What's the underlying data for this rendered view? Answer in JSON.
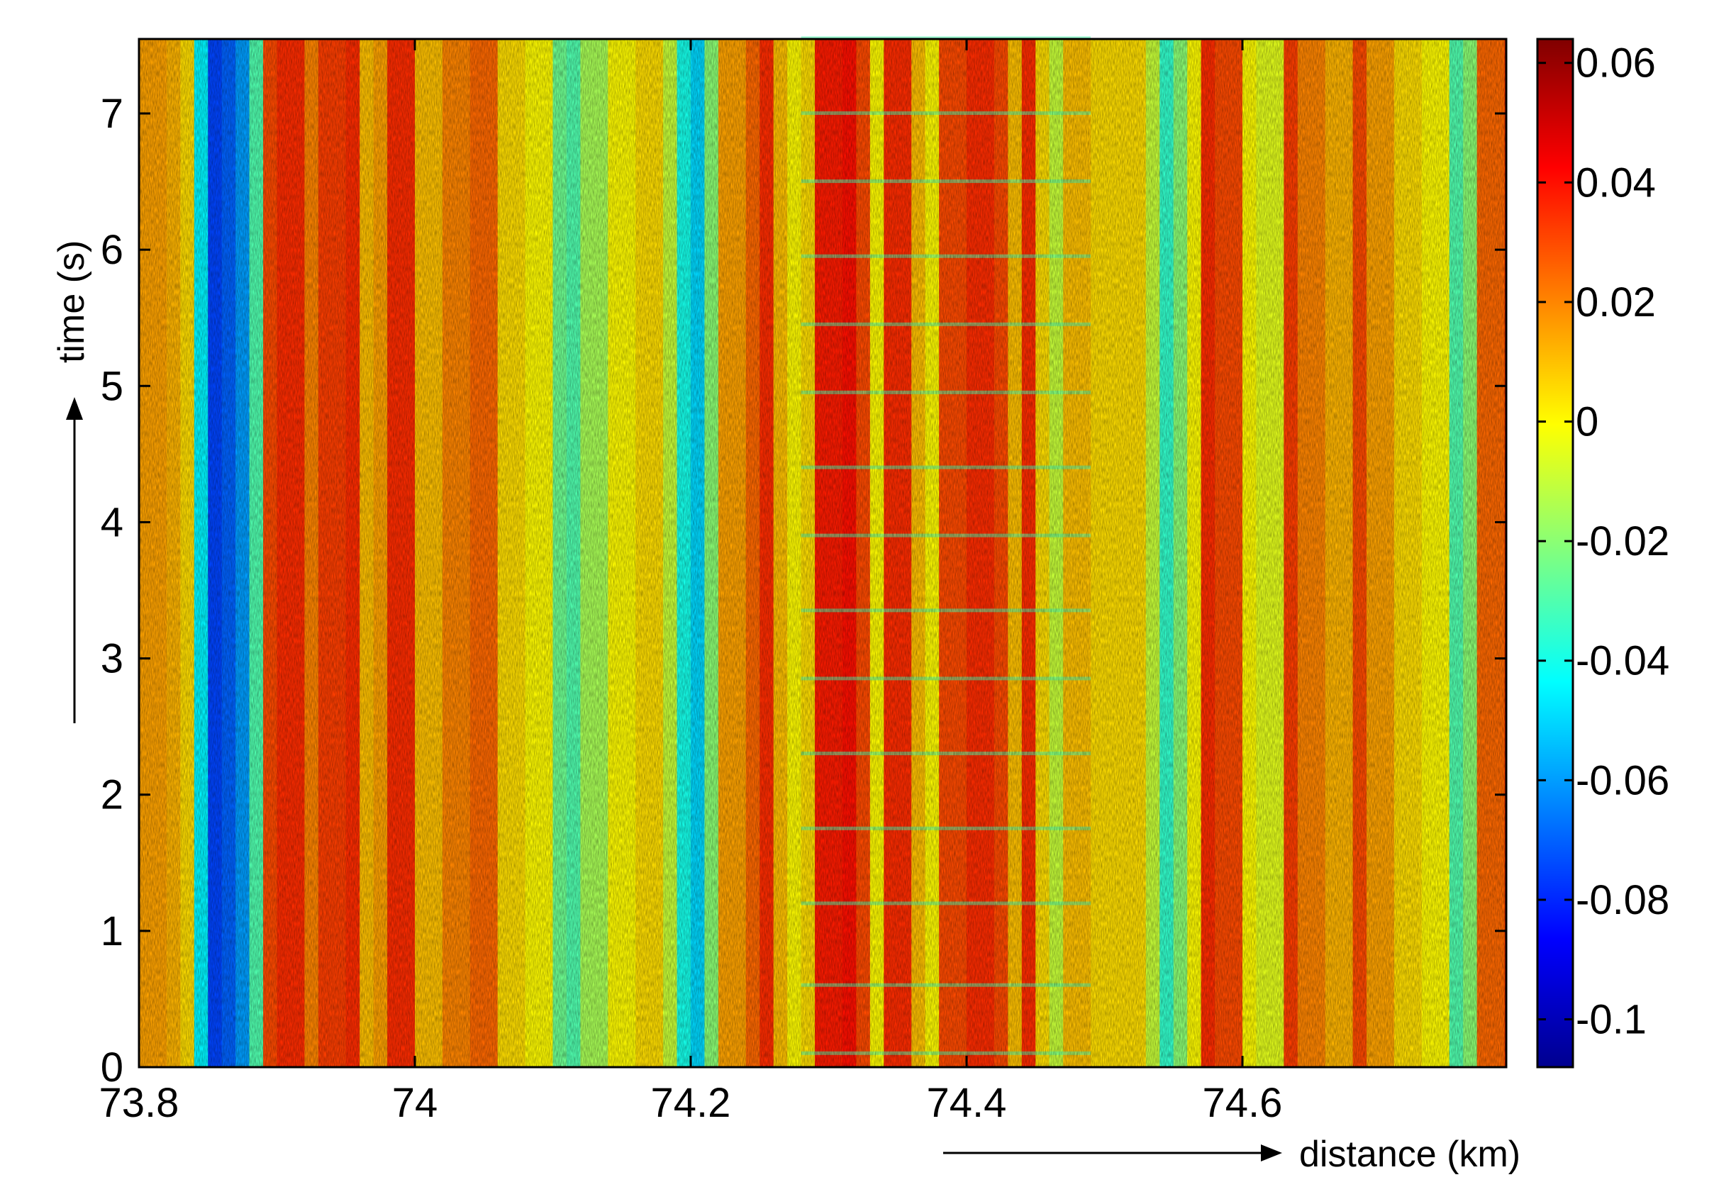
{
  "chart_data": {
    "type": "heatmap",
    "title": "",
    "xlabel": "distance (km)",
    "ylabel": "time (s)",
    "xlim": [
      73.8,
      74.82
    ],
    "ylim": [
      0,
      7.55
    ],
    "x_ticks": [
      73.8,
      74,
      74.2,
      74.4,
      74.6
    ],
    "x_tick_labels": [
      "73.8",
      "74",
      "74.2",
      "74.4",
      "74.6"
    ],
    "y_ticks": [
      0,
      1,
      2,
      3,
      4,
      5,
      6,
      7
    ],
    "y_tick_labels": [
      "0",
      "1",
      "2",
      "3",
      "4",
      "5",
      "6",
      "7"
    ],
    "colorbar": {
      "range": [
        -0.108,
        0.064
      ],
      "ticks": [
        0.06,
        0.04,
        0.02,
        0,
        -0.02,
        -0.04,
        -0.06,
        -0.08,
        -0.1
      ],
      "tick_labels": [
        "0.06",
        "0.04",
        "0.02",
        "0",
        "-0.02",
        "-0.04",
        "-0.06",
        "-0.08",
        "-0.1"
      ],
      "colormap": "jet"
    },
    "description_of_values": "Vertical stripes of roughly constant value over time; alternating positive (red/orange) and negative (blue/cyan) bands along distance; periodic horizontal streaks every ~0.55 s between 74.28 and 74.49 km.",
    "column_profile": [
      {
        "x": 73.8,
        "v": 0.015
      },
      {
        "x": 73.82,
        "v": 0.012
      },
      {
        "x": 73.83,
        "v": 0.005
      },
      {
        "x": 73.84,
        "v": -0.045
      },
      {
        "x": 73.85,
        "v": -0.075
      },
      {
        "x": 73.86,
        "v": -0.07
      },
      {
        "x": 73.87,
        "v": -0.06
      },
      {
        "x": 73.88,
        "v": -0.03
      },
      {
        "x": 73.89,
        "v": 0.03
      },
      {
        "x": 73.9,
        "v": 0.035
      },
      {
        "x": 73.92,
        "v": 0.02
      },
      {
        "x": 73.93,
        "v": 0.032
      },
      {
        "x": 73.95,
        "v": 0.035
      },
      {
        "x": 73.96,
        "v": 0.01
      },
      {
        "x": 73.97,
        "v": 0.015
      },
      {
        "x": 73.98,
        "v": 0.035
      },
      {
        "x": 74.0,
        "v": 0.01
      },
      {
        "x": 74.02,
        "v": 0.02
      },
      {
        "x": 74.04,
        "v": 0.025
      },
      {
        "x": 74.06,
        "v": 0.005
      },
      {
        "x": 74.08,
        "v": 0.0
      },
      {
        "x": 74.1,
        "v": -0.025
      },
      {
        "x": 74.11,
        "v": -0.03
      },
      {
        "x": 74.12,
        "v": -0.015
      },
      {
        "x": 74.14,
        "v": 0.0
      },
      {
        "x": 74.16,
        "v": 0.005
      },
      {
        "x": 74.18,
        "v": -0.01
      },
      {
        "x": 74.19,
        "v": -0.04
      },
      {
        "x": 74.2,
        "v": -0.05
      },
      {
        "x": 74.21,
        "v": -0.02
      },
      {
        "x": 74.22,
        "v": 0.015
      },
      {
        "x": 74.24,
        "v": 0.025
      },
      {
        "x": 74.25,
        "v": 0.035
      },
      {
        "x": 74.26,
        "v": 0.01
      },
      {
        "x": 74.27,
        "v": 0.0
      },
      {
        "x": 74.28,
        "v": 0.005
      },
      {
        "x": 74.29,
        "v": 0.038
      },
      {
        "x": 74.31,
        "v": 0.04
      },
      {
        "x": 74.32,
        "v": 0.03
      },
      {
        "x": 74.33,
        "v": 0.0
      },
      {
        "x": 74.34,
        "v": 0.035
      },
      {
        "x": 74.36,
        "v": 0.01
      },
      {
        "x": 74.37,
        "v": 0.0
      },
      {
        "x": 74.38,
        "v": 0.03
      },
      {
        "x": 74.4,
        "v": 0.035
      },
      {
        "x": 74.42,
        "v": 0.03
      },
      {
        "x": 74.43,
        "v": 0.01
      },
      {
        "x": 74.44,
        "v": 0.035
      },
      {
        "x": 74.45,
        "v": 0.005
      },
      {
        "x": 74.46,
        "v": -0.01
      },
      {
        "x": 74.47,
        "v": 0.01
      },
      {
        "x": 74.49,
        "v": 0.005
      },
      {
        "x": 74.51,
        "v": 0.005
      },
      {
        "x": 74.53,
        "v": -0.01
      },
      {
        "x": 74.54,
        "v": -0.035
      },
      {
        "x": 74.55,
        "v": -0.02
      },
      {
        "x": 74.56,
        "v": 0.0
      },
      {
        "x": 74.57,
        "v": 0.035
      },
      {
        "x": 74.58,
        "v": 0.03
      },
      {
        "x": 74.6,
        "v": 0.0
      },
      {
        "x": 74.61,
        "v": -0.005
      },
      {
        "x": 74.63,
        "v": 0.032
      },
      {
        "x": 74.64,
        "v": 0.02
      },
      {
        "x": 74.66,
        "v": 0.012
      },
      {
        "x": 74.68,
        "v": 0.03
      },
      {
        "x": 74.69,
        "v": 0.015
      },
      {
        "x": 74.71,
        "v": 0.005
      },
      {
        "x": 74.73,
        "v": 0.0
      },
      {
        "x": 74.75,
        "v": -0.03
      },
      {
        "x": 74.76,
        "v": -0.02
      },
      {
        "x": 74.77,
        "v": 0.025
      },
      {
        "x": 74.79,
        "v": 0.035
      },
      {
        "x": 74.82,
        "v": 0.03
      }
    ],
    "streaks": {
      "x_range": [
        74.28,
        74.49
      ],
      "times": [
        0.1,
        0.6,
        1.2,
        1.75,
        2.3,
        2.85,
        3.35,
        3.9,
        4.4,
        4.95,
        5.45,
        5.95,
        6.5,
        7.0,
        7.55
      ],
      "value": -0.03
    }
  }
}
